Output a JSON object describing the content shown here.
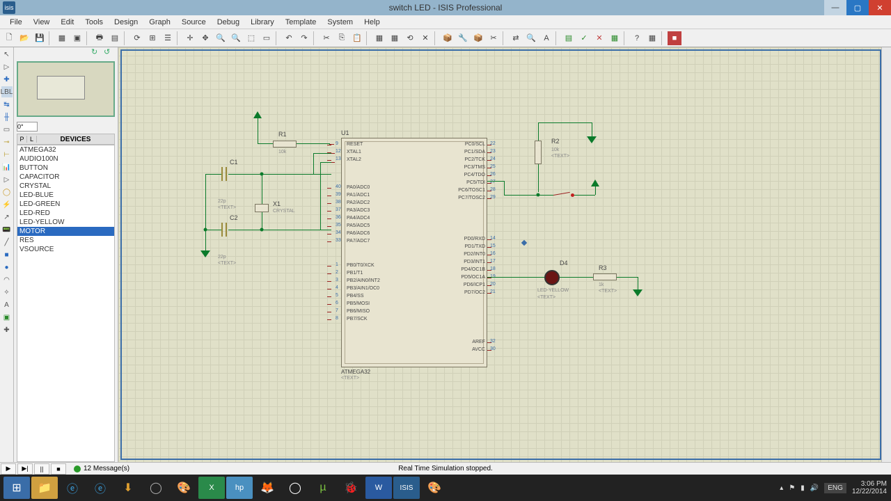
{
  "title": "switch LED - ISIS Professional",
  "app_icon_text": "isis",
  "window_buttons": {
    "min": "—",
    "max": "▢",
    "close": "✕"
  },
  "menus": [
    "File",
    "View",
    "Edit",
    "Tools",
    "Design",
    "Graph",
    "Source",
    "Debug",
    "Library",
    "Template",
    "System",
    "Help"
  ],
  "devices_header": "DEVICES",
  "devices_pl": [
    "P",
    "L"
  ],
  "rotation_value": "0°",
  "devices": [
    "ATMEGA32",
    "AUDIO100N",
    "BUTTON",
    "CAPACITOR",
    "CRYSTAL",
    "LED-BLUE",
    "LED-GREEN",
    "LED-RED",
    "LED-YELLOW",
    "MOTOR",
    "RES",
    "VSOURCE"
  ],
  "selected_device_index": 9,
  "sim": {
    "messages_count": "12 Message(s)",
    "status": "Real Time Simulation stopped.",
    "play": "▶",
    "step": "▶|",
    "pause": "||",
    "stop": "■"
  },
  "schematic": {
    "chip": {
      "ref": "U1",
      "name": "ATMEGA32",
      "text": "<TEXT>",
      "left_pins_a": [
        "RESET",
        "XTAL1",
        "XTAL2"
      ],
      "left_nums_a": [
        "9",
        "12",
        "13"
      ],
      "left_pins_b": [
        "PA0/ADC0",
        "PA1/ADC1",
        "PA2/ADC2",
        "PA3/ADC3",
        "PA4/ADC4",
        "PA5/ADC5",
        "PA6/ADC6",
        "PA7/ADC7"
      ],
      "left_nums_b": [
        "40",
        "39",
        "38",
        "37",
        "36",
        "35",
        "34",
        "33"
      ],
      "left_pins_c": [
        "PB0/T0/XCK",
        "PB1/T1",
        "PB2/AIN0/INT2",
        "PB3/AIN1/OC0",
        "PB4/SS",
        "PB5/MOSI",
        "PB6/MISO",
        "PB7/SCK"
      ],
      "left_nums_c": [
        "1",
        "2",
        "3",
        "4",
        "5",
        "6",
        "7",
        "8"
      ],
      "right_pins_a": [
        "PC0/SCL",
        "PC1/SDA",
        "PC2/TCK",
        "PC3/TMS",
        "PC4/TDO",
        "PC5/TDI",
        "PC6/TOSC1",
        "PC7/TOSC2"
      ],
      "right_nums_a": [
        "22",
        "23",
        "24",
        "25",
        "26",
        "27",
        "28",
        "29"
      ],
      "right_pins_b": [
        "PD0/RXD",
        "PD1/TXD",
        "PD2/INT0",
        "PD3/INT1",
        "PD4/OC1B",
        "PD5/OC1A",
        "PD6/ICP1",
        "PD7/OC2"
      ],
      "right_nums_b": [
        "14",
        "15",
        "16",
        "17",
        "18",
        "19",
        "20",
        "21"
      ],
      "right_pins_c": [
        "AREF",
        "AVCC"
      ],
      "right_nums_c": [
        "32",
        "30"
      ]
    },
    "components": {
      "R1": {
        "ref": "R1",
        "val": "10k",
        "text": "<TEXT>"
      },
      "R2": {
        "ref": "R2",
        "val": "10k",
        "text": "<TEXT>"
      },
      "R3": {
        "ref": "R3",
        "val": "1k",
        "text": "<TEXT>"
      },
      "C1": {
        "ref": "C1",
        "val": "22p",
        "text": "<TEXT>"
      },
      "C2": {
        "ref": "C2",
        "val": "22p",
        "text": "<TEXT>"
      },
      "X1": {
        "ref": "X1",
        "val": "CRYSTAL",
        "text": "<TEXT>"
      },
      "D4": {
        "ref": "D4",
        "val": "LED-YELLOW",
        "text": "<TEXT>"
      }
    }
  },
  "taskbar": {
    "lang": "ENG",
    "time": "3:06 PM",
    "date": "12/22/2014"
  },
  "colors": {
    "titlebar": "#94b4cb",
    "canvas": "#e0e0c8",
    "grid": "#d0d0b8",
    "wire": "#0a7a2a",
    "border": "#3a6da8",
    "selection": "#2a6ac0"
  }
}
